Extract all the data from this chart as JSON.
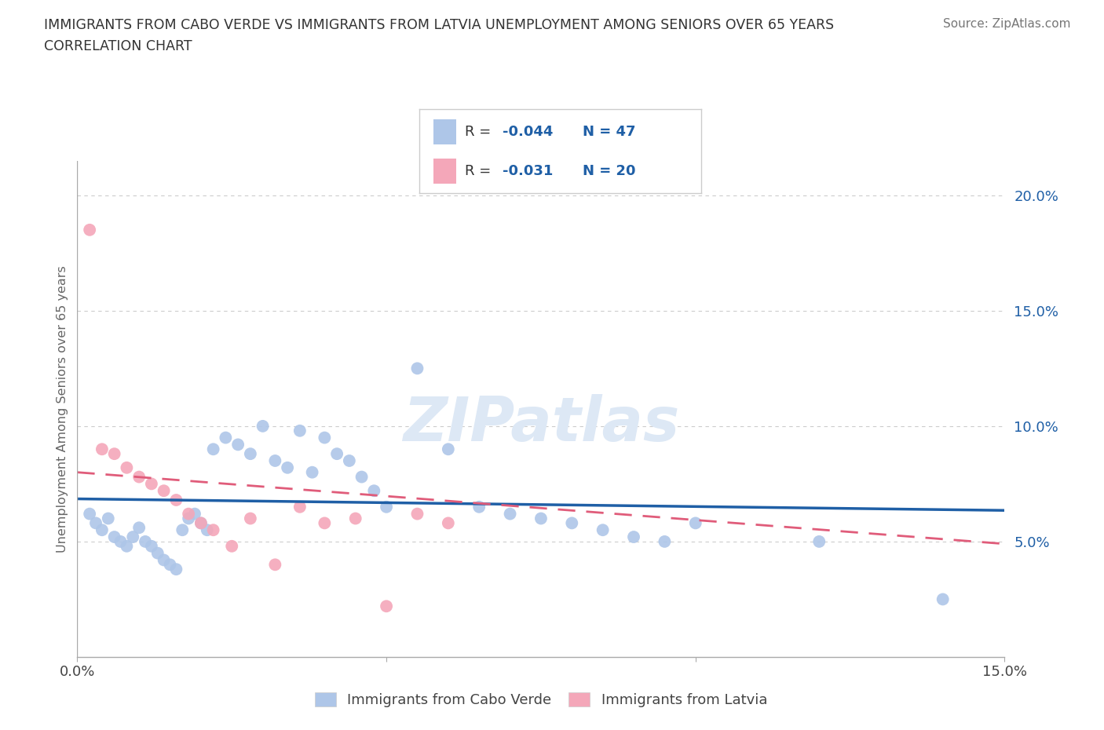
{
  "title_line1": "IMMIGRANTS FROM CABO VERDE VS IMMIGRANTS FROM LATVIA UNEMPLOYMENT AMONG SENIORS OVER 65 YEARS",
  "title_line2": "CORRELATION CHART",
  "source_text": "Source: ZipAtlas.com",
  "ylabel": "Unemployment Among Seniors over 65 years",
  "xlim": [
    0.0,
    0.15
  ],
  "ylim": [
    0.0,
    0.215
  ],
  "cabo_verde_color": "#aec6e8",
  "latvia_color": "#f4a7b9",
  "cabo_verde_line_color": "#1f5fa6",
  "latvia_line_color": "#e05c7a",
  "cabo_verde_R": -0.044,
  "cabo_verde_N": 47,
  "latvia_R": -0.031,
  "latvia_N": 20,
  "cabo_verde_x": [
    0.002,
    0.003,
    0.004,
    0.005,
    0.006,
    0.007,
    0.008,
    0.009,
    0.01,
    0.011,
    0.012,
    0.013,
    0.014,
    0.015,
    0.016,
    0.017,
    0.018,
    0.019,
    0.02,
    0.021,
    0.022,
    0.024,
    0.026,
    0.028,
    0.03,
    0.032,
    0.034,
    0.036,
    0.038,
    0.04,
    0.042,
    0.044,
    0.046,
    0.048,
    0.05,
    0.055,
    0.06,
    0.065,
    0.07,
    0.075,
    0.08,
    0.085,
    0.09,
    0.095,
    0.1,
    0.12,
    0.14
  ],
  "cabo_verde_y": [
    0.062,
    0.058,
    0.055,
    0.06,
    0.052,
    0.05,
    0.048,
    0.052,
    0.056,
    0.05,
    0.048,
    0.045,
    0.042,
    0.04,
    0.038,
    0.055,
    0.06,
    0.062,
    0.058,
    0.055,
    0.09,
    0.095,
    0.092,
    0.088,
    0.1,
    0.085,
    0.082,
    0.098,
    0.08,
    0.095,
    0.088,
    0.085,
    0.078,
    0.072,
    0.065,
    0.125,
    0.09,
    0.065,
    0.062,
    0.06,
    0.058,
    0.055,
    0.052,
    0.05,
    0.058,
    0.05,
    0.025
  ],
  "latvia_x": [
    0.002,
    0.004,
    0.006,
    0.008,
    0.01,
    0.012,
    0.014,
    0.016,
    0.018,
    0.02,
    0.022,
    0.025,
    0.028,
    0.032,
    0.036,
    0.04,
    0.045,
    0.05,
    0.055,
    0.06
  ],
  "latvia_y": [
    0.185,
    0.09,
    0.088,
    0.082,
    0.078,
    0.075,
    0.072,
    0.068,
    0.062,
    0.058,
    0.055,
    0.048,
    0.06,
    0.04,
    0.065,
    0.058,
    0.06,
    0.022,
    0.062,
    0.058
  ],
  "cabo_verde_line_x0": 0.0,
  "cabo_verde_line_y0": 0.0685,
  "cabo_verde_line_x1": 0.15,
  "cabo_verde_line_y1": 0.0635,
  "latvia_line_x0": 0.0,
  "latvia_line_y0": 0.08,
  "latvia_line_x1": 0.15,
  "latvia_line_y1": 0.049,
  "watermark": "ZIPatlas",
  "grid_color": "#cccccc",
  "background_color": "#ffffff"
}
